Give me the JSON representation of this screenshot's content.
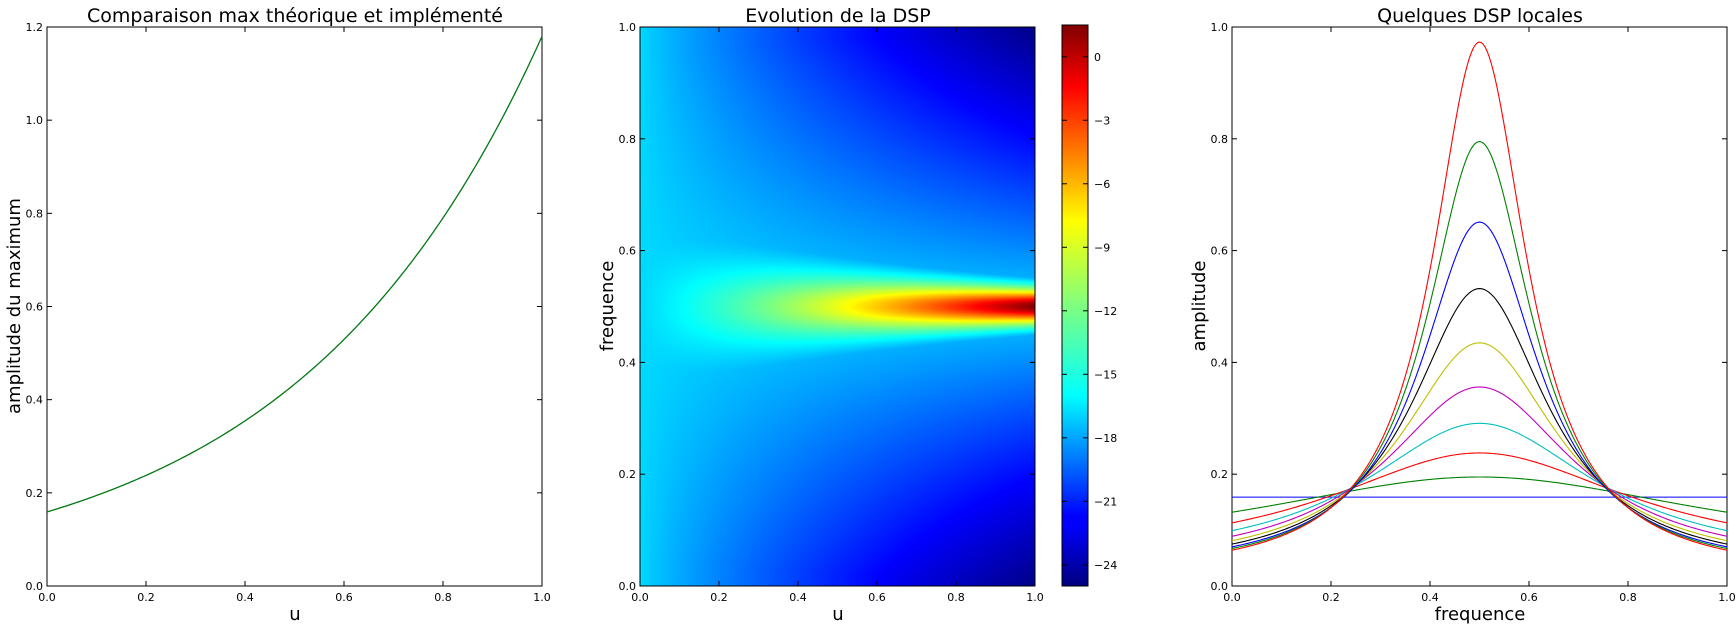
{
  "chart_data": [
    {
      "type": "line",
      "title": "Comparaison max théorique et implémenté",
      "xlabel": "u",
      "ylabel": "amplitude du maximum",
      "xlim": [
        0,
        1
      ],
      "ylim": [
        0,
        1.2
      ],
      "xticks": [
        "0.0",
        "0.2",
        "0.4",
        "0.6",
        "0.8",
        "1.0"
      ],
      "yticks": [
        "0.0",
        "0.2",
        "0.4",
        "0.6",
        "0.8",
        "1.0",
        "1.2"
      ],
      "grid": false,
      "series": [
        {
          "color": "#0000ff",
          "x": [
            0,
            0.1,
            0.2,
            0.3,
            0.4,
            0.5,
            0.6,
            0.7,
            0.8,
            0.9,
            1.0
          ],
          "y": [
            0.159,
            0.195,
            0.238,
            0.291,
            0.356,
            0.435,
            0.532,
            0.651,
            0.795,
            0.973,
            1.18
          ]
        },
        {
          "color": "#008000",
          "x": [
            0,
            0.1,
            0.2,
            0.3,
            0.4,
            0.5,
            0.6,
            0.7,
            0.8,
            0.9,
            1.0
          ],
          "y": [
            0.159,
            0.195,
            0.238,
            0.291,
            0.356,
            0.435,
            0.532,
            0.651,
            0.795,
            0.973,
            1.18
          ]
        }
      ]
    },
    {
      "type": "heatmap",
      "title": "Evolution de la DSP",
      "xlabel": "u",
      "ylabel": "frequence",
      "xlim": [
        0,
        1
      ],
      "ylim": [
        0,
        1
      ],
      "xticks": [
        "0.0",
        "0.2",
        "0.4",
        "0.6",
        "0.8",
        "1.0"
      ],
      "yticks": [
        "0.0",
        "0.2",
        "0.4",
        "0.6",
        "0.8",
        "1.0"
      ],
      "colormap": "jet",
      "colorbar": {
        "range": [
          -25,
          1.5
        ],
        "ticks": [
          "0",
          "−3",
          "−6",
          "−9",
          "−12",
          "−15",
          "−18",
          "−21",
          "−24"
        ],
        "tick_values": [
          0,
          -3,
          -6,
          -9,
          -12,
          -15,
          -18,
          -21,
          -24
        ]
      },
      "value_samples": [
        {
          "u": 0.0,
          "f": 0.5,
          "value": -16.0
        },
        {
          "u": 0.5,
          "f": 0.5,
          "value": -8.8
        },
        {
          "u": 1.0,
          "f": 0.5,
          "value": 1.4
        },
        {
          "u": 0.5,
          "f": 0.0,
          "value": -21.5
        },
        {
          "u": 1.0,
          "f": 0.0,
          "value": -24.8
        },
        {
          "u": 1.0,
          "f": 1.0,
          "value": -24.8
        }
      ]
    },
    {
      "type": "line",
      "title": "Quelques DSP locales",
      "xlabel": "frequence",
      "ylabel": "amplitude",
      "xlim": [
        0,
        1
      ],
      "ylim": [
        0,
        1.0
      ],
      "xticks": [
        "0.0",
        "0.2",
        "0.4",
        "0.6",
        "0.8",
        "1.0"
      ],
      "yticks": [
        "0.0",
        "0.2",
        "0.4",
        "0.6",
        "0.8",
        "1.0"
      ],
      "grid": false,
      "series": [
        {
          "color": "#0000ff",
          "peak": 0.159,
          "edge": 0.159
        },
        {
          "color": "#008000",
          "peak": 0.195,
          "edge": 0.132
        },
        {
          "color": "#ff0000",
          "peak": 0.238,
          "edge": 0.113
        },
        {
          "color": "#00bfbf",
          "peak": 0.291,
          "edge": 0.099
        },
        {
          "color": "#bf00bf",
          "peak": 0.356,
          "edge": 0.089
        },
        {
          "color": "#bfbf00",
          "peak": 0.435,
          "edge": 0.081
        },
        {
          "color": "#000000",
          "peak": 0.532,
          "edge": 0.075
        },
        {
          "color": "#0000ff",
          "peak": 0.651,
          "edge": 0.07
        },
        {
          "color": "#008000",
          "peak": 0.795,
          "edge": 0.067
        },
        {
          "color": "#ff0000",
          "peak": 0.973,
          "edge": 0.064
        }
      ]
    }
  ]
}
